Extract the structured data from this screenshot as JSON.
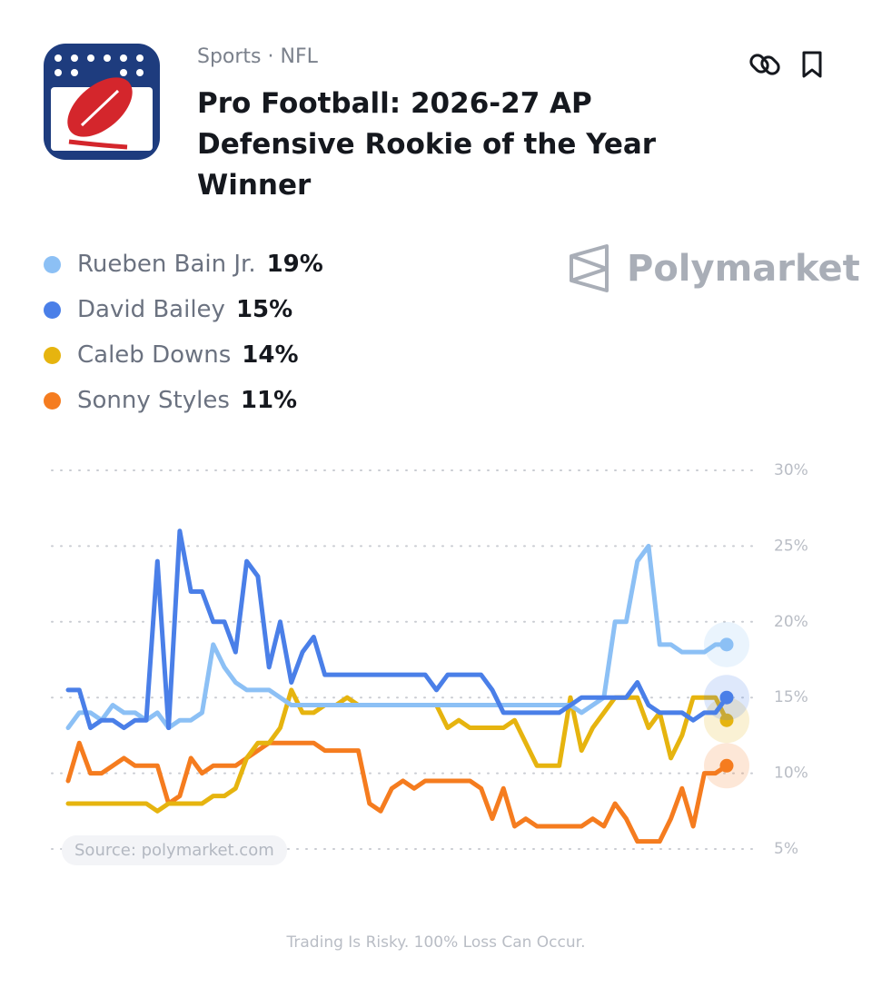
{
  "header": {
    "category": "Sports · NFL",
    "title": "Pro Football: 2026-27 AP Defensive Rookie of the Year Winner",
    "brand": "Polymarket"
  },
  "chart_data": {
    "type": "line",
    "series": [
      {
        "name": "Rueben Bain Jr.",
        "value_label": "19%",
        "color": "#8cc0f5",
        "values": [
          13,
          14,
          14,
          13.5,
          14.5,
          14,
          14,
          13.5,
          14,
          13,
          13.5,
          13.5,
          14,
          18.5,
          17,
          16,
          15.5,
          15.5,
          15.5,
          15,
          14.5,
          14.5,
          14.5,
          14.5,
          14.5,
          14.5,
          14.5,
          14.5,
          14.5,
          14.5,
          14.5,
          14.5,
          14.5,
          14.5,
          14.5,
          14.5,
          14.5,
          14.5,
          14.5,
          14.5,
          14.5,
          14.5,
          14.5,
          14.5,
          14.5,
          14.5,
          14,
          14.5,
          15,
          20,
          20,
          24,
          25,
          18.5,
          18.5,
          18,
          18,
          18,
          18.5,
          18.5
        ]
      },
      {
        "name": "David Bailey",
        "value_label": "15%",
        "color": "#4a7fe8",
        "values": [
          15.5,
          15.5,
          13,
          13.5,
          13.5,
          13,
          13.5,
          13.5,
          24,
          13,
          26,
          22,
          22,
          20,
          20,
          18,
          24,
          23,
          17,
          20,
          16,
          18,
          19,
          16.5,
          16.5,
          16.5,
          16.5,
          16.5,
          16.5,
          16.5,
          16.5,
          16.5,
          16.5,
          15.5,
          16.5,
          16.5,
          16.5,
          16.5,
          15.5,
          14,
          14,
          14,
          14,
          14,
          14,
          14.5,
          15,
          15,
          15,
          15,
          15,
          16,
          14.5,
          14,
          14,
          14,
          13.5,
          14,
          14,
          15
        ]
      },
      {
        "name": "Caleb Downs",
        "value_label": "14%",
        "color": "#e6b40f",
        "values": [
          8,
          8,
          8,
          8,
          8,
          8,
          8,
          8,
          7.5,
          8,
          8,
          8,
          8,
          8.5,
          8.5,
          9,
          11,
          12,
          12,
          13,
          15.5,
          14,
          14,
          14.5,
          14.5,
          15,
          14.5,
          14.5,
          14.5,
          14.5,
          14.5,
          14.5,
          14.5,
          14.5,
          13,
          13.5,
          13,
          13,
          13,
          13,
          13.5,
          12,
          10.5,
          10.5,
          10.5,
          15,
          11.5,
          13,
          14,
          15,
          15,
          15,
          13,
          14,
          11,
          12.5,
          15,
          15,
          15,
          13.5
        ]
      },
      {
        "name": "Sonny Styles",
        "value_label": "11%",
        "color": "#f57c1f",
        "values": [
          9.5,
          12,
          10,
          10,
          10.5,
          11,
          10.5,
          10.5,
          10.5,
          8,
          8.5,
          11,
          10,
          10.5,
          10.5,
          10.5,
          11,
          11.5,
          12,
          12,
          12,
          12,
          12,
          11.5,
          11.5,
          11.5,
          11.5,
          8,
          7.5,
          9,
          9.5,
          9,
          9.5,
          9.5,
          9.5,
          9.5,
          9.5,
          9,
          7,
          9,
          6.5,
          7,
          6.5,
          6.5,
          6.5,
          6.5,
          6.5,
          7,
          6.5,
          8,
          7,
          5.5,
          5.5,
          5.5,
          7,
          9,
          6.5,
          10,
          10,
          10.5
        ]
      }
    ],
    "ylim": [
      5,
      30
    ],
    "yticks": [
      {
        "value": 5,
        "label": "5%"
      },
      {
        "value": 10,
        "label": "10%"
      },
      {
        "value": 15,
        "label": "15%"
      },
      {
        "value": 20,
        "label": "20%"
      },
      {
        "value": 25,
        "label": "25%"
      },
      {
        "value": 30,
        "label": "30%"
      }
    ],
    "grid": true,
    "source": "Source: polymarket.com"
  },
  "footer": "Trading Is Risky. 100% Loss Can Occur."
}
